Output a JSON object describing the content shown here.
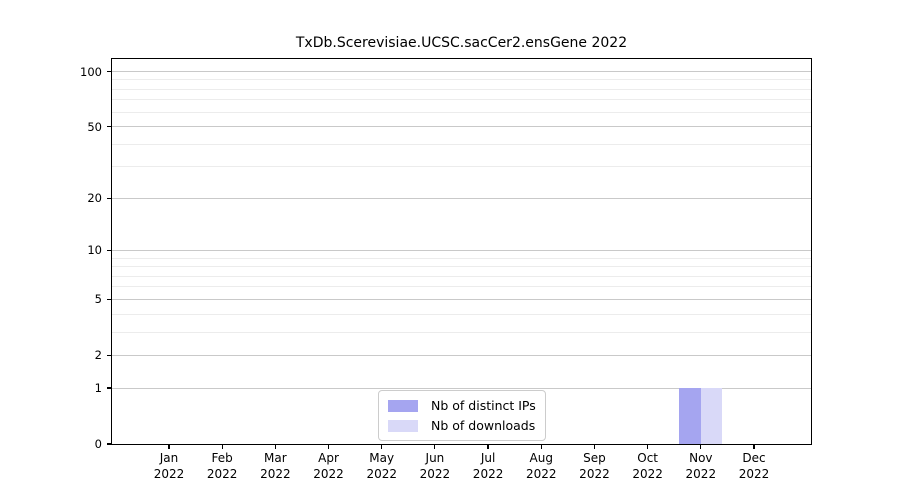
{
  "chart_data": {
    "type": "bar",
    "title": "TxDb.Scerevisiae.UCSC.sacCer2.ensGene 2022",
    "categories": [
      "Jan",
      "Feb",
      "Mar",
      "Apr",
      "May",
      "Jun",
      "Jul",
      "Aug",
      "Sep",
      "Oct",
      "Nov",
      "Dec"
    ],
    "category_year": "2022",
    "series": [
      {
        "name": "Nb of distinct IPs",
        "color": "#a5a5f0",
        "values": [
          0,
          0,
          0,
          0,
          0,
          0,
          0,
          0,
          0,
          0,
          1,
          0
        ]
      },
      {
        "name": "Nb of downloads",
        "color": "#d9d9f8",
        "values": [
          0,
          0,
          0,
          0,
          0,
          0,
          0,
          0,
          0,
          0,
          1,
          0
        ]
      }
    ],
    "y_axis": {
      "scale": "log1p",
      "major_ticks": [
        0,
        1,
        2,
        5,
        10,
        20,
        50,
        100
      ],
      "minor_gridlines": [
        3,
        4,
        6,
        7,
        8,
        9,
        30,
        40,
        60,
        70,
        80,
        90
      ],
      "max": 117
    },
    "grid": {
      "horizontal": true,
      "vertical": false,
      "major_color": "#c9c9c9",
      "minor_color": "#ececec"
    },
    "legend": {
      "position": "bottom-center"
    },
    "frame_color": "#000000",
    "background_color": "#ffffff"
  }
}
